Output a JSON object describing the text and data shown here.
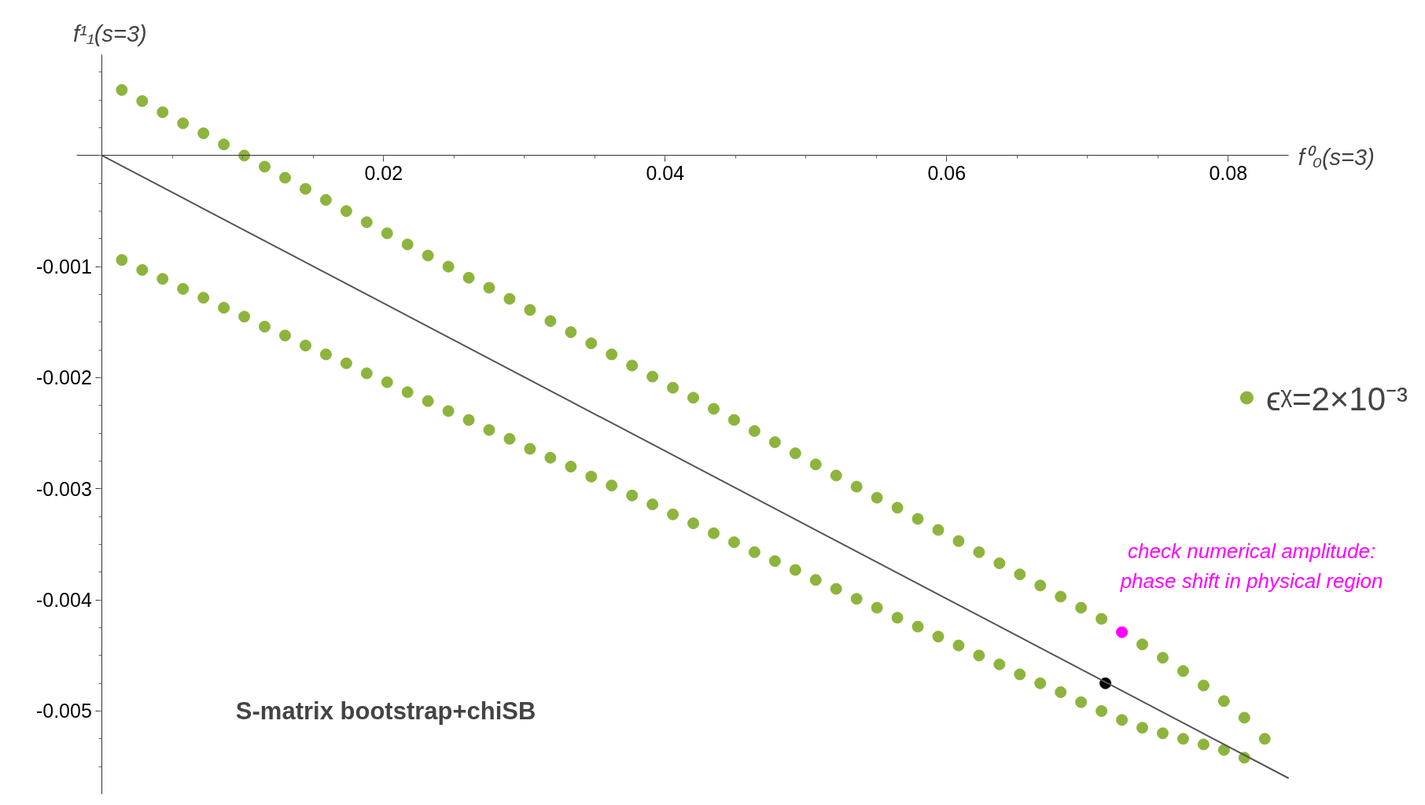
{
  "chart_data": {
    "type": "scatter",
    "xlabel": "f⁰₀(s=3)",
    "ylabel": "f¹₁(s=3)",
    "xlim": [
      -0.0018,
      0.0843
    ],
    "ylim": [
      -0.00575,
      0.00091
    ],
    "xticks": [
      0.02,
      0.04,
      0.06,
      0.08
    ],
    "yticks": [
      {
        "value": -0.001,
        "label": "-0.001"
      },
      {
        "value": -0.002,
        "label": "-0.002"
      },
      {
        "value": -0.003,
        "label": "-0.003"
      },
      {
        "value": -0.004,
        "label": "-0.004"
      },
      {
        "value": -0.005,
        "label": "-0.005"
      }
    ],
    "grid": false,
    "legend": "right",
    "marker": "circle",
    "series": [
      {
        "name": "ϵᵡ=2×10⁻³",
        "color": "#8db43c",
        "x": [
          0.0014,
          0.00285,
          0.0043,
          0.00575,
          0.0072,
          0.00865,
          0.0101,
          0.01155,
          0.013,
          0.01445,
          0.0159,
          0.01735,
          0.0188,
          0.02025,
          0.0217,
          0.02315,
          0.0246,
          0.02605,
          0.0275,
          0.02895,
          0.0304,
          0.03185,
          0.0333,
          0.03475,
          0.0362,
          0.03765,
          0.0391,
          0.04055,
          0.042,
          0.04345,
          0.0449,
          0.04635,
          0.0478,
          0.04925,
          0.0507,
          0.05215,
          0.0536,
          0.05505,
          0.0565,
          0.05795,
          0.0594,
          0.06085,
          0.0623,
          0.06375,
          0.0652,
          0.06665,
          0.0681,
          0.06955,
          0.071,
          0.07245,
          0.0739,
          0.07535,
          0.0768,
          0.07825,
          0.0797,
          0.08115,
          0.0826,
          0.0014,
          0.00285,
          0.0043,
          0.00575,
          0.0072,
          0.00865,
          0.0101,
          0.01155,
          0.013,
          0.01445,
          0.0159,
          0.01735,
          0.0188,
          0.02025,
          0.0217,
          0.02315,
          0.0246,
          0.02605,
          0.0275,
          0.02895,
          0.0304,
          0.03185,
          0.0333,
          0.03475,
          0.0362,
          0.03765,
          0.0391,
          0.04055,
          0.042,
          0.04345,
          0.0449,
          0.04635,
          0.0478,
          0.04925,
          0.0507,
          0.05215,
          0.0536,
          0.05505,
          0.0565,
          0.05795,
          0.0594,
          0.06085,
          0.0623,
          0.06375,
          0.0652,
          0.06665,
          0.0681,
          0.06955,
          0.071,
          0.07245,
          0.0739,
          0.07535,
          0.0768,
          0.07825,
          0.0797,
          0.08115
        ],
        "values": [
          0.00059,
          0.00049,
          0.00039,
          0.00029,
          0.0002,
          0.0001,
          0.0,
          -0.0001,
          -0.0002,
          -0.0003,
          -0.0004,
          -0.0005,
          -0.0006,
          -0.0007,
          -0.0008,
          -0.0009,
          -0.001,
          -0.0011,
          -0.00119,
          -0.00129,
          -0.00139,
          -0.00149,
          -0.00159,
          -0.00169,
          -0.00179,
          -0.00189,
          -0.00199,
          -0.00209,
          -0.00218,
          -0.00228,
          -0.00238,
          -0.00248,
          -0.00258,
          -0.00268,
          -0.00278,
          -0.00288,
          -0.00298,
          -0.00308,
          -0.00317,
          -0.00327,
          -0.00337,
          -0.00347,
          -0.00357,
          -0.00367,
          -0.00377,
          -0.00387,
          -0.00397,
          -0.00407,
          -0.00417,
          null,
          -0.0044,
          -0.00452,
          -0.00464,
          -0.00477,
          -0.00491,
          -0.00506,
          -0.00525,
          -0.00094,
          -0.00103,
          -0.00111,
          -0.0012,
          -0.00128,
          -0.00137,
          -0.00145,
          -0.00154,
          -0.00162,
          -0.00171,
          -0.00179,
          -0.00187,
          -0.00196,
          -0.00204,
          -0.00213,
          -0.00221,
          -0.0023,
          -0.00238,
          -0.00247,
          -0.00255,
          -0.00264,
          -0.00272,
          -0.0028,
          -0.00289,
          -0.00297,
          -0.00306,
          -0.00314,
          -0.00323,
          -0.00331,
          -0.0034,
          -0.00348,
          -0.00357,
          -0.00365,
          -0.00373,
          -0.00382,
          -0.0039,
          -0.00399,
          -0.00407,
          -0.00416,
          -0.00424,
          -0.00433,
          -0.00441,
          -0.0045,
          -0.00458,
          -0.00467,
          -0.00475,
          -0.00483,
          -0.00492,
          -0.005,
          -0.00508,
          -0.00515,
          -0.0052,
          -0.00525,
          -0.0053,
          -0.00535,
          -0.00542
        ]
      },
      {
        "color": "#ff00ff",
        "x": [
          0.07245
        ],
        "values": [
          -0.00429
        ]
      },
      {
        "color": "#000000",
        "x": [
          0.07128
        ],
        "values": [
          -0.00475
        ]
      },
      {
        "type": "line",
        "marker": "none",
        "color": "#555555",
        "x": [
          0.0,
          0.0843
        ],
        "values": [
          0.0,
          -0.005605
        ]
      }
    ],
    "annotations": [
      {
        "text": "check numerical amplitude:\nphase shift in physical region",
        "x": 0.07245,
        "y": -0.00429
      },
      "S-matrix bootstrap+chiSB"
    ]
  }
}
